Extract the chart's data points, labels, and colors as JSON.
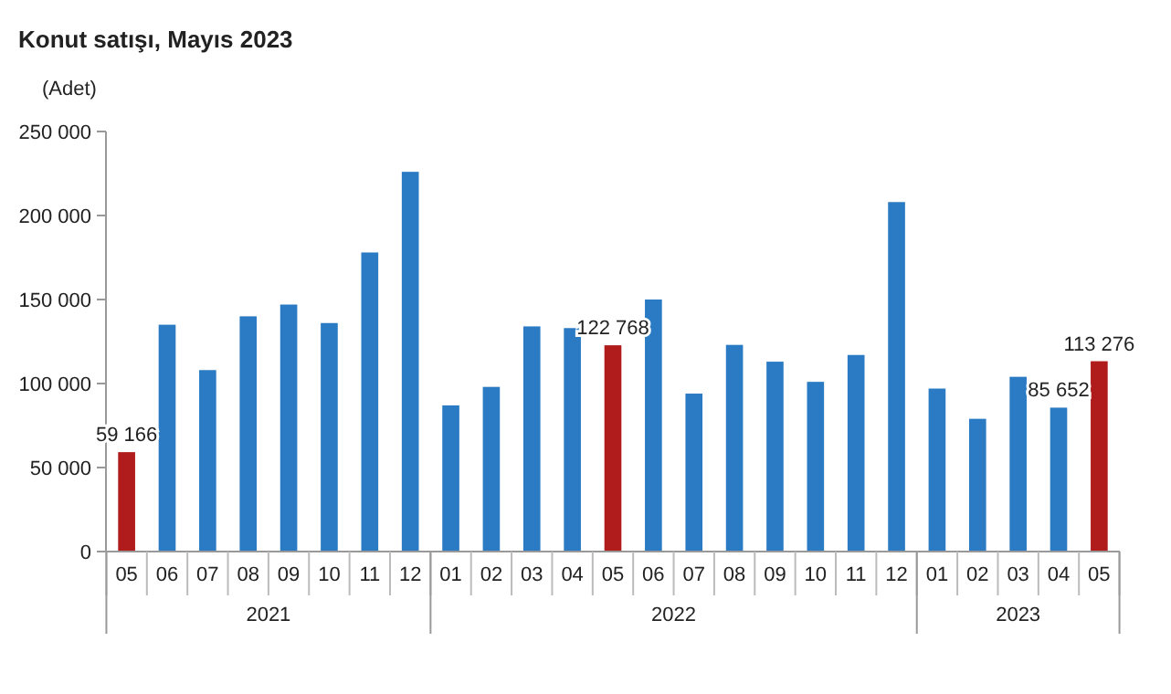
{
  "chart_data": {
    "type": "bar",
    "title": "Konut satışı, Mayıs 2023",
    "ylabel": "(Adet)",
    "categories": [
      "05",
      "06",
      "07",
      "08",
      "09",
      "10",
      "11",
      "12",
      "01",
      "02",
      "03",
      "04",
      "05",
      "06",
      "07",
      "08",
      "09",
      "10",
      "11",
      "12",
      "01",
      "02",
      "03",
      "04",
      "05"
    ],
    "values": [
      59166,
      135000,
      108000,
      140000,
      147000,
      136000,
      178000,
      226000,
      87000,
      98000,
      134000,
      133000,
      122768,
      150000,
      94000,
      123000,
      113000,
      101000,
      117000,
      208000,
      97000,
      79000,
      104000,
      85652,
      113276
    ],
    "colors": [
      "#b01c1c",
      "#2a7bc4",
      "#2a7bc4",
      "#2a7bc4",
      "#2a7bc4",
      "#2a7bc4",
      "#2a7bc4",
      "#2a7bc4",
      "#2a7bc4",
      "#2a7bc4",
      "#2a7bc4",
      "#2a7bc4",
      "#b01c1c",
      "#2a7bc4",
      "#2a7bc4",
      "#2a7bc4",
      "#2a7bc4",
      "#2a7bc4",
      "#2a7bc4",
      "#2a7bc4",
      "#2a7bc4",
      "#2a7bc4",
      "#2a7bc4",
      "#2a7bc4",
      "#b01c1c"
    ],
    "value_labels": [
      "59 166",
      null,
      null,
      null,
      null,
      null,
      null,
      null,
      null,
      null,
      null,
      null,
      "122 768",
      null,
      null,
      null,
      null,
      null,
      null,
      null,
      null,
      null,
      null,
      "85 652",
      "113 276"
    ],
    "annotations": [
      "2021",
      "2022",
      "2023"
    ],
    "ylim": [
      0,
      250000
    ],
    "yticks": [
      0,
      {
        "value": 50000,
        "label": "50 000"
      },
      {
        "value": 100000,
        "label": "100 000"
      },
      {
        "value": 150000,
        "label": "150 000"
      },
      {
        "value": 200000,
        "label": "200 000"
      },
      {
        "value": 250000,
        "label": "250 000"
      }
    ],
    "grid": false
  }
}
